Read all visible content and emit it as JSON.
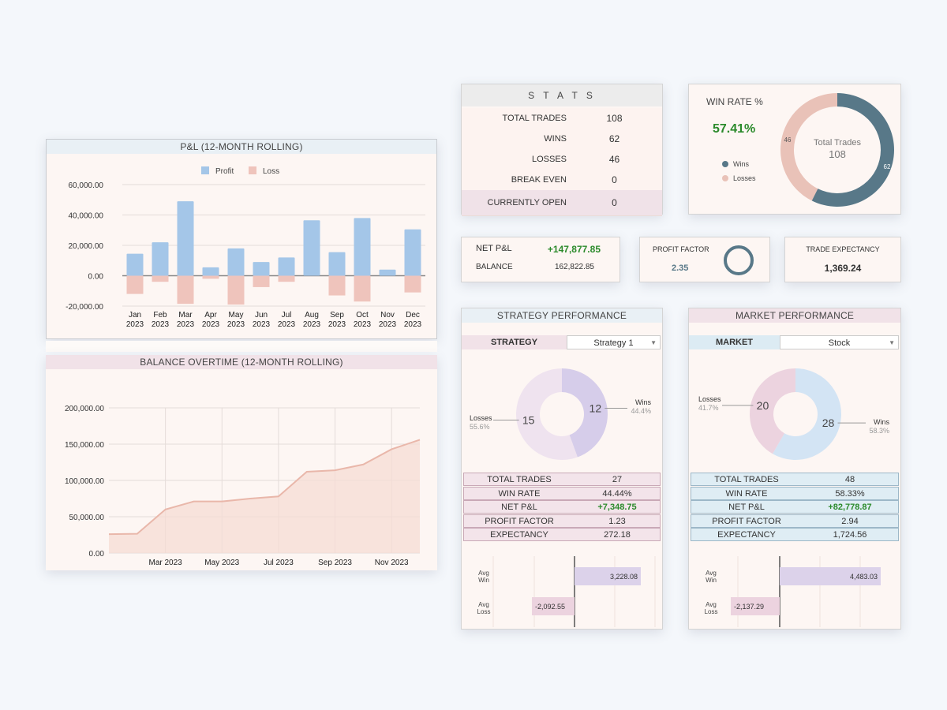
{
  "pnl": {
    "title": "P&L (12-MONTH ROLLING)",
    "legend_profit": "Profit",
    "legend_loss": "Loss",
    "ticks": [
      "60,000.00",
      "40,000.00",
      "20,000.00",
      "0.00",
      "-20,000.00"
    ],
    "months": [
      "Jan",
      "Feb",
      "Mar",
      "Apr",
      "May",
      "Jun",
      "Jul",
      "Aug",
      "Sep",
      "Oct",
      "Nov",
      "Dec"
    ],
    "year": "2023"
  },
  "balance": {
    "title": "BALANCE OVERTIME (12-MONTH ROLLING)",
    "ticks": [
      "200,000.00",
      "150,000.00",
      "100,000.00",
      "50,000.00",
      "0.00"
    ],
    "xticks": [
      "Mar 2023",
      "May 2023",
      "Jul 2023",
      "Sep 2023",
      "Nov 2023"
    ]
  },
  "stats": {
    "title": "S T A T S",
    "rows": [
      {
        "label": "TOTAL TRADES",
        "value": "108"
      },
      {
        "label": "WINS",
        "value": "62"
      },
      {
        "label": "LOSSES",
        "value": "46"
      },
      {
        "label": "BREAK EVEN",
        "value": "0"
      },
      {
        "label": "CURRENTLY OPEN",
        "value": "0"
      }
    ]
  },
  "winrate": {
    "title": "WIN RATE %",
    "value": "57.41%",
    "legend_wins": "Wins",
    "legend_losses": "Losses",
    "center_label": "Total Trades",
    "center_value": "108",
    "wins": "62",
    "losses": "46"
  },
  "netpnl": {
    "net_label": "NET P&L",
    "net_value": "+147,877.85",
    "balance_label": "BALANCE",
    "balance_value": "162,822.85"
  },
  "profit_factor": {
    "label": "PROFIT FACTOR",
    "value": "2.35"
  },
  "expectancy": {
    "label": "TRADE EXPECTANCY",
    "value": "1,369.24"
  },
  "strategy": {
    "title": "STRATEGY PERFORMANCE",
    "filter_label": "STRATEGY",
    "filter_value": "Strategy 1",
    "donut": {
      "losses_label": "Losses",
      "losses_pct": "55.6%",
      "losses": "15",
      "wins_label": "Wins",
      "wins_pct": "44.4%",
      "wins": "12"
    },
    "rows": [
      {
        "label": "TOTAL TRADES",
        "value": "27"
      },
      {
        "label": "WIN RATE",
        "value": "44.44%"
      },
      {
        "label": "NET P&L",
        "value": "+7,348.75"
      },
      {
        "label": "PROFIT FACTOR",
        "value": "1.23"
      },
      {
        "label": "EXPECTANCY",
        "value": "272.18"
      }
    ],
    "avg_win_label": "Avg\nWin",
    "avg_loss_label": "Avg\nLoss",
    "avg_win": "3,228.08",
    "avg_loss": "-2,092.55"
  },
  "market": {
    "title": "MARKET PERFORMANCE",
    "filter_label": "MARKET",
    "filter_value": "Stock",
    "donut": {
      "losses_label": "Losses",
      "losses_pct": "41.7%",
      "losses": "20",
      "wins_label": "Wins",
      "wins_pct": "58.3%",
      "wins": "28"
    },
    "rows": [
      {
        "label": "TOTAL TRADES",
        "value": "48"
      },
      {
        "label": "WIN RATE",
        "value": "58.33%"
      },
      {
        "label": "NET P&L",
        "value": "+82,778.87"
      },
      {
        "label": "PROFIT FACTOR",
        "value": "2.94"
      },
      {
        "label": "EXPECTANCY",
        "value": "1,724.56"
      }
    ],
    "avg_win_label": "Avg\nWin",
    "avg_loss_label": "Avg\nLoss",
    "avg_win": "4,483.03",
    "avg_loss": "-2,137.29"
  },
  "colors": {
    "profit": "#a4c6e8",
    "loss": "#efc4bc",
    "balance_fill": "#f6dcd4",
    "balance_line": "#e9b7aa",
    "donut_wins": "#587888",
    "donut_losses": "#e9c2b8",
    "green": "#2b8a2b",
    "strat_wins": "#d6cdea",
    "strat_losses": "#efe3ef",
    "mkt_wins": "#d3e4f4",
    "mkt_losses": "#ecd3df"
  },
  "chart_data": [
    {
      "type": "bar",
      "title": "P&L (12-MONTH ROLLING)",
      "categories": [
        "Jan 2023",
        "Feb 2023",
        "Mar 2023",
        "Apr 2023",
        "May 2023",
        "Jun 2023",
        "Jul 2023",
        "Aug 2023",
        "Sep 2023",
        "Oct 2023",
        "Nov 2023",
        "Dec 2023"
      ],
      "series": [
        {
          "name": "Profit",
          "values": [
            14500,
            22000,
            49000,
            5500,
            18000,
            9000,
            12000,
            36500,
            15500,
            38000,
            4000,
            30500
          ]
        },
        {
          "name": "Loss",
          "values": [
            -12000,
            -4000,
            -18500,
            -2000,
            -19000,
            -7500,
            -4000,
            0,
            -13000,
            -17000,
            0,
            -11000
          ]
        }
      ],
      "ylim": [
        -20000,
        60000
      ],
      "legend": "top-center",
      "grid": true
    },
    {
      "type": "area",
      "title": "BALANCE OVERTIME (12-MONTH ROLLING)",
      "x": [
        "2023-01",
        "2023-02",
        "2023-03",
        "2023-04",
        "2023-05",
        "2023-06",
        "2023-07",
        "2023-08",
        "2023-09",
        "2023-10",
        "2023-11",
        "2023-12"
      ],
      "values": [
        26000,
        26500,
        60000,
        71000,
        71000,
        75000,
        78000,
        112000,
        114000,
        122000,
        143000,
        156000
      ],
      "ylim": [
        0,
        200000
      ],
      "grid": true
    },
    {
      "type": "pie",
      "title": "WIN RATE %",
      "categories": [
        "Wins",
        "Losses"
      ],
      "values": [
        62,
        46
      ]
    }
  ]
}
